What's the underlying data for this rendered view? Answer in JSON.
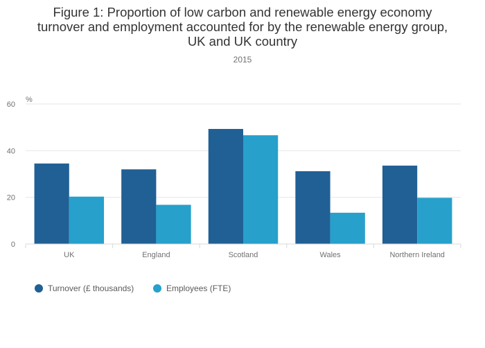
{
  "chart_data": {
    "type": "bar",
    "title_lines": [
      "Figure 1: Proportion of low carbon and renewable energy economy",
      "turnover and employment accounted for by the renewable energy group,",
      "UK and UK country"
    ],
    "subtitle": "2015",
    "ylabel": "%",
    "ylim": [
      0,
      60
    ],
    "yticks": [
      0,
      20,
      40,
      60
    ],
    "categories": [
      "UK",
      "England",
      "Scotland",
      "Wales",
      "Northern Ireland"
    ],
    "series": [
      {
        "name": "Turnover (£ thousands)",
        "color": "#206095",
        "values": [
          34.5,
          32,
          49.3,
          31.2,
          33.6
        ]
      },
      {
        "name": "Employees (FTE)",
        "color": "#27a0cc",
        "values": [
          20.3,
          16.8,
          46.6,
          13.4,
          19.8
        ]
      }
    ],
    "legend_position": "bottom-left",
    "grid": true
  }
}
